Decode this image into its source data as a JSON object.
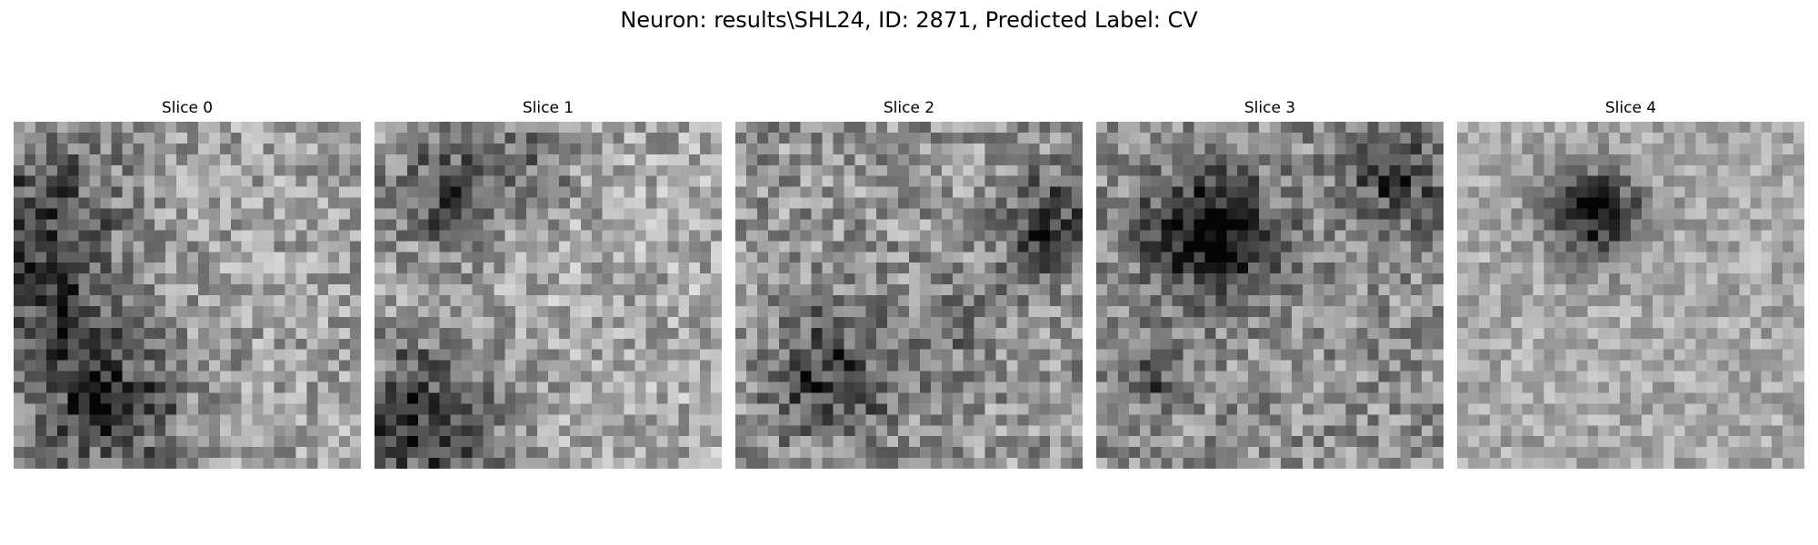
{
  "figure": {
    "title": "Neuron: results\\SHL24, ID: 2871, Predicted Label: CV"
  },
  "panels": [
    {
      "title": "Slice 0"
    },
    {
      "title": "Slice 1"
    },
    {
      "title": "Slice 2"
    },
    {
      "title": "Slice 3"
    },
    {
      "title": "Slice 4"
    }
  ],
  "image_style": {
    "colormap": "gray",
    "grid_size": 32,
    "axes_visible": false
  }
}
